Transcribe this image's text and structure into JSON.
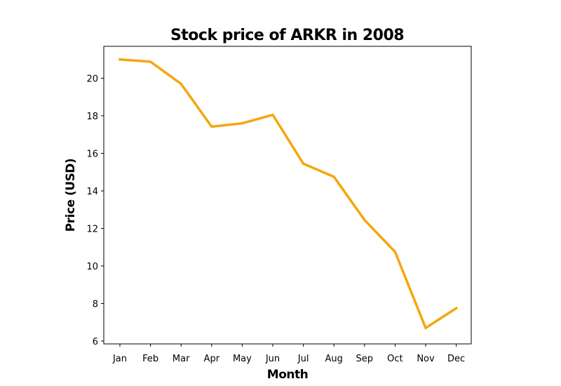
{
  "chart_data": {
    "type": "line",
    "title": "Stock price of ARKR in 2008",
    "xlabel": "Month",
    "ylabel": "Price (USD)",
    "categories": [
      "Jan",
      "Feb",
      "Mar",
      "Apr",
      "May",
      "Jun",
      "Jul",
      "Aug",
      "Sep",
      "Oct",
      "Nov",
      "Dec"
    ],
    "series": [
      {
        "values": [
          21.0,
          20.88,
          19.7,
          17.42,
          17.6,
          18.05,
          15.45,
          14.75,
          12.45,
          10.75,
          6.7,
          7.75
        ],
        "color": "#f5a60d"
      }
    ],
    "ylim": [
      5.85,
      21.7
    ],
    "yticks": [
      6,
      8,
      10,
      12,
      14,
      16,
      18,
      20
    ],
    "grid": false,
    "legend": "none"
  }
}
